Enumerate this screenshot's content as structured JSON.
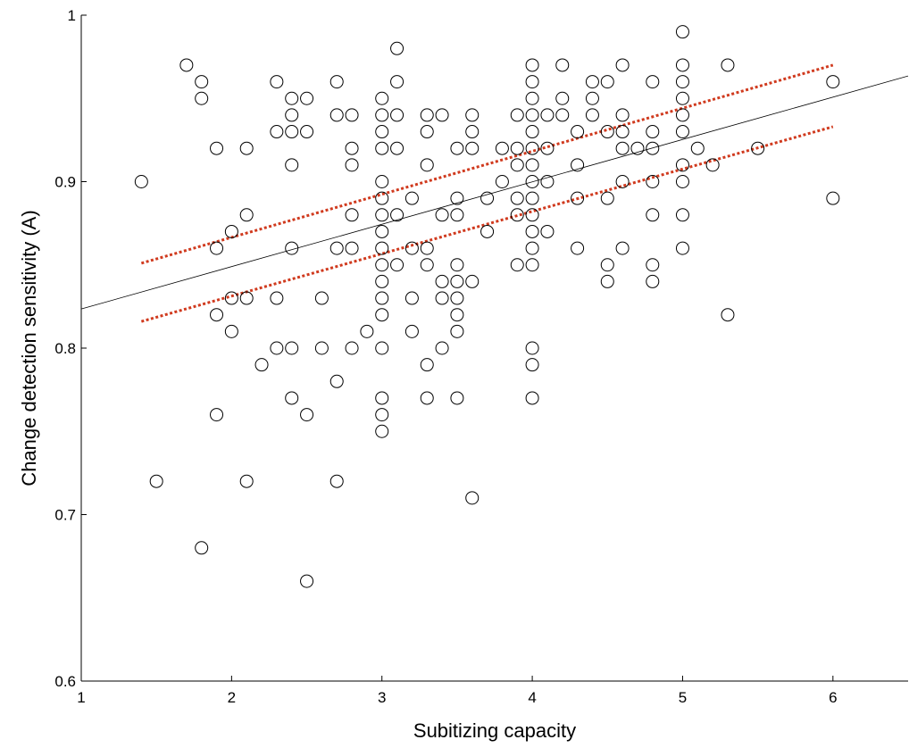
{
  "chart_data": {
    "type": "scatter",
    "title": "",
    "xlabel": "Subitizing capacity",
    "ylabel": "Change detection sensitivity (A)",
    "xlim": [
      1,
      6.5
    ],
    "ylim": [
      0.6,
      1.0
    ],
    "xticks": [
      1,
      2,
      3,
      4,
      5,
      6
    ],
    "yticks": [
      0.6,
      0.7,
      0.8,
      0.9,
      1.0
    ],
    "xtick_labels": [
      "1",
      "2",
      "3",
      "4",
      "5",
      "6"
    ],
    "ytick_labels": [
      "0.6",
      "0.7",
      "0.8",
      "0.9",
      "1"
    ],
    "grid": false,
    "legend": "none",
    "points": [
      [
        1.4,
        0.9
      ],
      [
        1.5,
        0.72
      ],
      [
        1.7,
        0.97
      ],
      [
        1.8,
        0.96
      ],
      [
        1.8,
        0.95
      ],
      [
        1.8,
        0.68
      ],
      [
        1.9,
        0.92
      ],
      [
        1.9,
        0.86
      ],
      [
        1.9,
        0.82
      ],
      [
        1.9,
        0.76
      ],
      [
        2.0,
        0.87
      ],
      [
        2.0,
        0.83
      ],
      [
        2.0,
        0.81
      ],
      [
        2.1,
        0.92
      ],
      [
        2.1,
        0.88
      ],
      [
        2.1,
        0.83
      ],
      [
        2.1,
        0.72
      ],
      [
        2.2,
        0.79
      ],
      [
        2.3,
        0.96
      ],
      [
        2.3,
        0.93
      ],
      [
        2.3,
        0.83
      ],
      [
        2.3,
        0.8
      ],
      [
        2.4,
        0.95
      ],
      [
        2.4,
        0.94
      ],
      [
        2.4,
        0.93
      ],
      [
        2.4,
        0.91
      ],
      [
        2.4,
        0.86
      ],
      [
        2.4,
        0.8
      ],
      [
        2.4,
        0.77
      ],
      [
        2.5,
        0.95
      ],
      [
        2.5,
        0.93
      ],
      [
        2.5,
        0.76
      ],
      [
        2.5,
        0.66
      ],
      [
        2.6,
        0.83
      ],
      [
        2.6,
        0.8
      ],
      [
        2.7,
        0.96
      ],
      [
        2.7,
        0.94
      ],
      [
        2.7,
        0.86
      ],
      [
        2.7,
        0.78
      ],
      [
        2.7,
        0.72
      ],
      [
        2.8,
        0.94
      ],
      [
        2.8,
        0.92
      ],
      [
        2.8,
        0.91
      ],
      [
        2.8,
        0.88
      ],
      [
        2.8,
        0.86
      ],
      [
        2.8,
        0.8
      ],
      [
        2.9,
        0.81
      ],
      [
        3.0,
        0.95
      ],
      [
        3.0,
        0.94
      ],
      [
        3.0,
        0.93
      ],
      [
        3.0,
        0.92
      ],
      [
        3.0,
        0.9
      ],
      [
        3.0,
        0.89
      ],
      [
        3.0,
        0.88
      ],
      [
        3.0,
        0.87
      ],
      [
        3.0,
        0.86
      ],
      [
        3.0,
        0.85
      ],
      [
        3.0,
        0.84
      ],
      [
        3.0,
        0.83
      ],
      [
        3.0,
        0.82
      ],
      [
        3.0,
        0.8
      ],
      [
        3.0,
        0.77
      ],
      [
        3.0,
        0.76
      ],
      [
        3.0,
        0.75
      ],
      [
        3.1,
        0.98
      ],
      [
        3.1,
        0.96
      ],
      [
        3.1,
        0.94
      ],
      [
        3.1,
        0.92
      ],
      [
        3.1,
        0.88
      ],
      [
        3.1,
        0.85
      ],
      [
        3.2,
        0.89
      ],
      [
        3.2,
        0.86
      ],
      [
        3.2,
        0.83
      ],
      [
        3.2,
        0.81
      ],
      [
        3.3,
        0.94
      ],
      [
        3.3,
        0.93
      ],
      [
        3.3,
        0.91
      ],
      [
        3.3,
        0.86
      ],
      [
        3.3,
        0.85
      ],
      [
        3.3,
        0.79
      ],
      [
        3.3,
        0.77
      ],
      [
        3.4,
        0.94
      ],
      [
        3.4,
        0.88
      ],
      [
        3.4,
        0.84
      ],
      [
        3.4,
        0.83
      ],
      [
        3.4,
        0.8
      ],
      [
        3.5,
        0.92
      ],
      [
        3.5,
        0.89
      ],
      [
        3.5,
        0.88
      ],
      [
        3.5,
        0.85
      ],
      [
        3.5,
        0.84
      ],
      [
        3.5,
        0.83
      ],
      [
        3.5,
        0.82
      ],
      [
        3.5,
        0.81
      ],
      [
        3.5,
        0.77
      ],
      [
        3.6,
        0.94
      ],
      [
        3.6,
        0.93
      ],
      [
        3.6,
        0.92
      ],
      [
        3.6,
        0.84
      ],
      [
        3.6,
        0.71
      ],
      [
        3.7,
        0.89
      ],
      [
        3.7,
        0.87
      ],
      [
        3.8,
        0.92
      ],
      [
        3.8,
        0.9
      ],
      [
        3.9,
        0.94
      ],
      [
        3.9,
        0.92
      ],
      [
        3.9,
        0.91
      ],
      [
        3.9,
        0.89
      ],
      [
        3.9,
        0.88
      ],
      [
        3.9,
        0.85
      ],
      [
        4.0,
        0.97
      ],
      [
        4.0,
        0.96
      ],
      [
        4.0,
        0.95
      ],
      [
        4.0,
        0.94
      ],
      [
        4.0,
        0.93
      ],
      [
        4.0,
        0.92
      ],
      [
        4.0,
        0.91
      ],
      [
        4.0,
        0.9
      ],
      [
        4.0,
        0.89
      ],
      [
        4.0,
        0.88
      ],
      [
        4.0,
        0.87
      ],
      [
        4.0,
        0.86
      ],
      [
        4.0,
        0.85
      ],
      [
        4.0,
        0.8
      ],
      [
        4.0,
        0.79
      ],
      [
        4.0,
        0.77
      ],
      [
        4.1,
        0.94
      ],
      [
        4.1,
        0.92
      ],
      [
        4.1,
        0.9
      ],
      [
        4.1,
        0.87
      ],
      [
        4.2,
        0.97
      ],
      [
        4.2,
        0.95
      ],
      [
        4.2,
        0.94
      ],
      [
        4.3,
        0.93
      ],
      [
        4.3,
        0.91
      ],
      [
        4.3,
        0.89
      ],
      [
        4.3,
        0.86
      ],
      [
        4.4,
        0.96
      ],
      [
        4.4,
        0.95
      ],
      [
        4.4,
        0.94
      ],
      [
        4.5,
        0.96
      ],
      [
        4.5,
        0.93
      ],
      [
        4.5,
        0.89
      ],
      [
        4.5,
        0.85
      ],
      [
        4.5,
        0.84
      ],
      [
        4.6,
        0.97
      ],
      [
        4.6,
        0.94
      ],
      [
        4.6,
        0.93
      ],
      [
        4.6,
        0.92
      ],
      [
        4.6,
        0.9
      ],
      [
        4.6,
        0.86
      ],
      [
        4.7,
        0.92
      ],
      [
        4.8,
        0.96
      ],
      [
        4.8,
        0.93
      ],
      [
        4.8,
        0.92
      ],
      [
        4.8,
        0.9
      ],
      [
        4.8,
        0.88
      ],
      [
        4.8,
        0.85
      ],
      [
        4.8,
        0.84
      ],
      [
        5.0,
        0.99
      ],
      [
        5.0,
        0.97
      ],
      [
        5.0,
        0.96
      ],
      [
        5.0,
        0.95
      ],
      [
        5.0,
        0.94
      ],
      [
        5.0,
        0.93
      ],
      [
        5.0,
        0.91
      ],
      [
        5.0,
        0.9
      ],
      [
        5.0,
        0.88
      ],
      [
        5.0,
        0.86
      ],
      [
        5.1,
        0.92
      ],
      [
        5.2,
        0.91
      ],
      [
        5.3,
        0.97
      ],
      [
        5.3,
        0.82
      ],
      [
        5.5,
        0.92
      ],
      [
        6.0,
        0.96
      ],
      [
        6.0,
        0.89
      ]
    ],
    "fit_line": {
      "x": [
        1.0,
        6.5
      ],
      "y": [
        0.8235,
        0.9635
      ],
      "color": "#000000"
    },
    "confidence_band": {
      "color": "#d03a1e",
      "upper": {
        "x": [
          1.4,
          6.0
        ],
        "y": [
          0.851,
          0.97
        ]
      },
      "lower": {
        "x": [
          1.4,
          6.0
        ],
        "y": [
          0.816,
          0.933
        ]
      }
    }
  }
}
